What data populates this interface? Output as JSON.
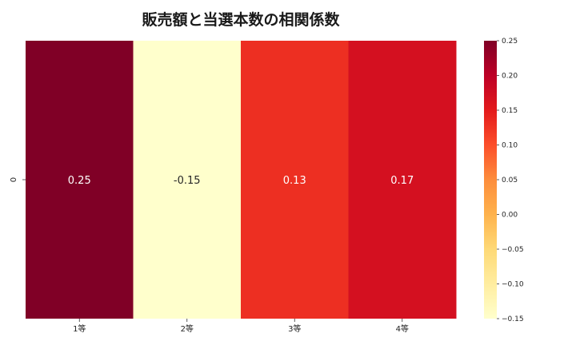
{
  "chart_data": {
    "type": "heatmap",
    "title": "販売額と当選本数の相関係数",
    "xlabel": "",
    "ylabel": "",
    "x_categories": [
      "1等",
      "2等",
      "3等",
      "4等"
    ],
    "y_categories": [
      "0"
    ],
    "values": [
      [
        0.25,
        -0.15,
        0.13,
        0.17
      ]
    ],
    "cell_labels": [
      [
        "0.25",
        "-0.15",
        "0.13",
        "0.17"
      ]
    ],
    "colormap": "YlOrRd",
    "colorbar": {
      "range": [
        -0.15,
        0.25
      ],
      "ticks": [
        0.25,
        0.2,
        0.15,
        0.1,
        0.05,
        0.0,
        -0.05,
        -0.1,
        -0.15
      ],
      "tick_labels": [
        "0.25",
        "0.20",
        "0.15",
        "0.10",
        "0.05",
        "0.00",
        "−0.05",
        "−0.10",
        "−0.15"
      ],
      "placement": "right"
    },
    "grid": false
  }
}
